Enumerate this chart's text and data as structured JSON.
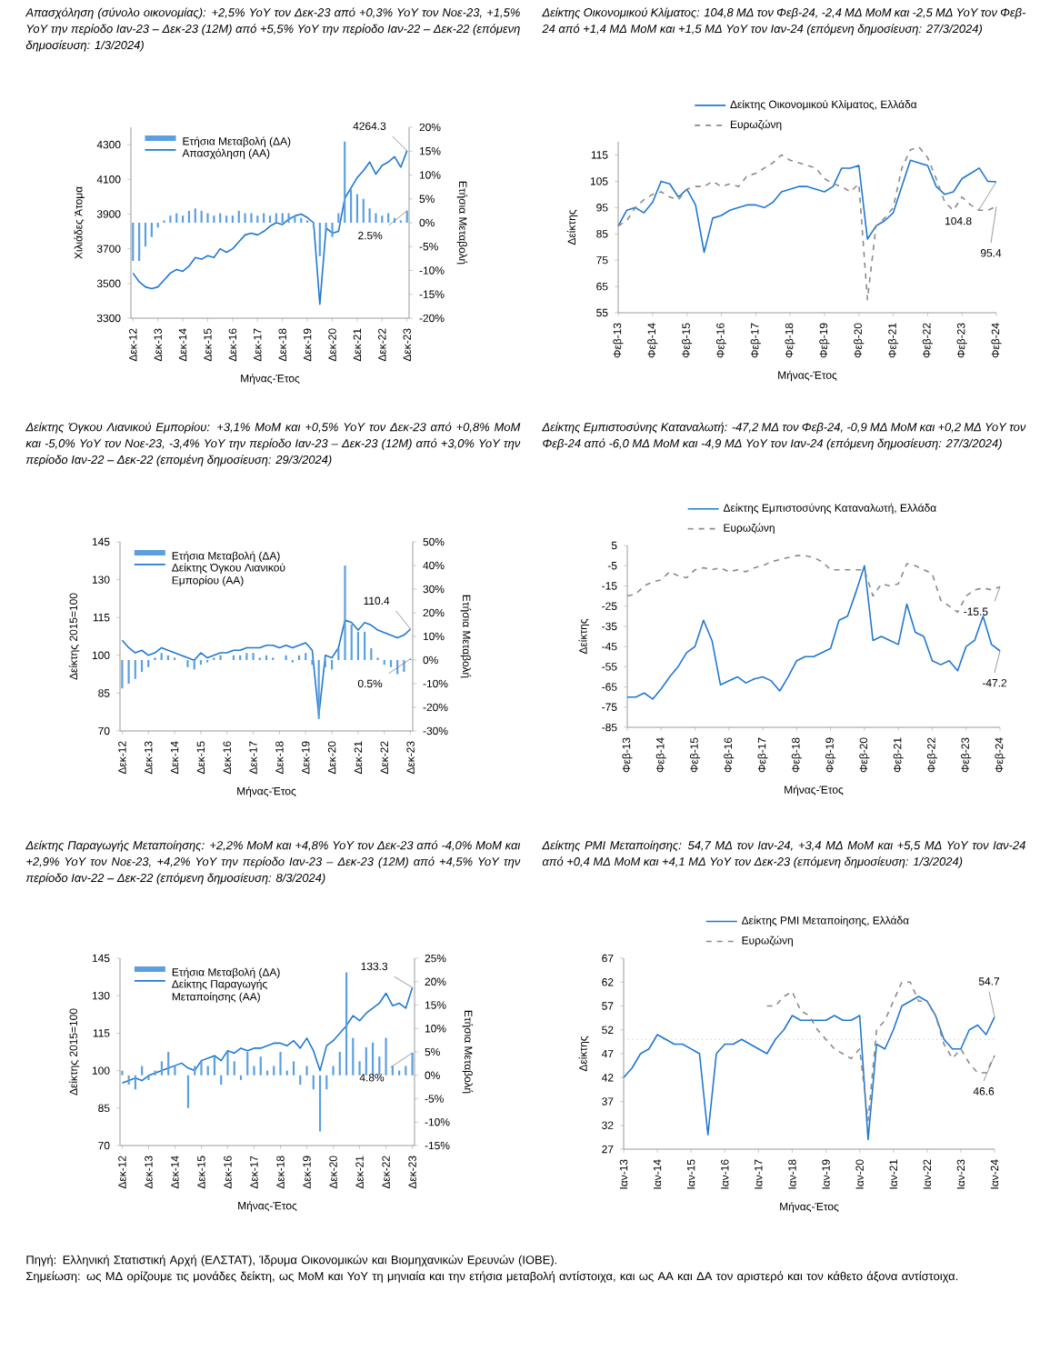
{
  "chart_data": [
    {
      "type": "line",
      "title": "Απασχόληση (σύνολο οικονομίας): +2,5% YoY τον Δεκ-23 από +0,3% YoY τον Νοε-23, +1,5% YoY την περίοδο Ιαν-23 – Δεκ-23 (12M) από +5,5% YoY την περίοδο Ιαν-22 – Δεκ-22 (επόμενη δημοσίευση: 1/3/2024)",
      "xlabel": "Μήνας-Έτος",
      "ylabel": "Χιλιάδες Άτομα",
      "y2label": "Ετήσια Μεταβολή",
      "legend": "top left",
      "x": [
        "2012-12",
        "2013-03",
        "2013-06",
        "2013-09",
        "2013-12",
        "2014-03",
        "2014-06",
        "2014-09",
        "2014-12",
        "2015-03",
        "2015-06",
        "2015-09",
        "2015-12",
        "2016-03",
        "2016-06",
        "2016-09",
        "2016-12",
        "2017-03",
        "2017-06",
        "2017-09",
        "2017-12",
        "2018-03",
        "2018-06",
        "2018-09",
        "2018-12",
        "2019-03",
        "2019-06",
        "2019-09",
        "2019-12",
        "2020-03",
        "2020-06",
        "2020-09",
        "2020-12",
        "2021-03",
        "2021-06",
        "2021-09",
        "2021-12",
        "2022-03",
        "2022-06",
        "2022-09",
        "2022-12",
        "2023-03",
        "2023-06",
        "2023-09",
        "2023-12"
      ],
      "xlim": [
        "2012-11",
        "2024-01"
      ],
      "xticks": [
        {
          "value": "2012-12",
          "label": "Δεκ-12"
        },
        {
          "value": "2013-12",
          "label": "Δεκ-13"
        },
        {
          "value": "2014-12",
          "label": "Δεκ-14"
        },
        {
          "value": "2015-12",
          "label": "Δεκ-15"
        },
        {
          "value": "2016-12",
          "label": "Δεκ-16"
        },
        {
          "value": "2017-12",
          "label": "Δεκ-17"
        },
        {
          "value": "2018-12",
          "label": "Δεκ-18"
        },
        {
          "value": "2019-12",
          "label": "Δεκ-19"
        },
        {
          "value": "2020-12",
          "label": "Δεκ-20"
        },
        {
          "value": "2021-12",
          "label": "Δεκ-21"
        },
        {
          "value": "2022-12",
          "label": "Δεκ-22"
        },
        {
          "value": "2023-12",
          "label": "Δεκ-23"
        }
      ],
      "ylim": [
        3300,
        4400
      ],
      "yticks": [
        3300,
        3500,
        3700,
        3900,
        4100,
        4300
      ],
      "y2lim": [
        -20,
        20
      ],
      "y2ticks": [
        {
          "value": -20,
          "label": "-20%"
        },
        {
          "value": -15,
          "label": "-15%"
        },
        {
          "value": -10,
          "label": "-10%"
        },
        {
          "value": -5,
          "label": "-5%"
        },
        {
          "value": 0,
          "label": "0%"
        },
        {
          "value": 5,
          "label": "5%"
        },
        {
          "value": 10,
          "label": "10%"
        },
        {
          "value": 15,
          "label": "15%"
        },
        {
          "value": 20,
          "label": "20%"
        }
      ],
      "series": [
        {
          "name": "Ετήσια Μεταβολή (ΔΑ)",
          "type": "bar",
          "axis": "y2",
          "color": "#5b9fe0",
          "values": [
            -8,
            -8,
            -5,
            -3,
            -1,
            0.5,
            1.5,
            2,
            1.5,
            2.5,
            3,
            2.5,
            2,
            1.5,
            2,
            1.5,
            1.5,
            2.5,
            2,
            2,
            1.5,
            2,
            1.5,
            2,
            2,
            2,
            1.5,
            1,
            0.5,
            -1,
            -7,
            -2,
            -3,
            2,
            17,
            7,
            6,
            5,
            3,
            2,
            1.5,
            2,
            1,
            0.5,
            2.5
          ],
          "value_labels": [
            null,
            null,
            null,
            null,
            null,
            null,
            null,
            null,
            null,
            null,
            null,
            null,
            null,
            null,
            null,
            null,
            null,
            null,
            null,
            null,
            null,
            null,
            null,
            null,
            null,
            null,
            null,
            null,
            null,
            null,
            null,
            null,
            null,
            null,
            null,
            null,
            null,
            null,
            null,
            null,
            null,
            null,
            null,
            null,
            "2.5%"
          ]
        },
        {
          "name": "Απασχόληση (ΑΑ)",
          "type": "line",
          "color": "#1f78d1",
          "values": [
            3560,
            3510,
            3480,
            3470,
            3480,
            3520,
            3560,
            3580,
            3570,
            3600,
            3650,
            3640,
            3660,
            3650,
            3700,
            3680,
            3700,
            3740,
            3780,
            3790,
            3780,
            3800,
            3830,
            3850,
            3840,
            3870,
            3890,
            3900,
            3880,
            3850,
            3380,
            3820,
            3790,
            3800,
            3990,
            4050,
            4110,
            4150,
            4200,
            4130,
            4180,
            4200,
            4230,
            4170,
            4264.3
          ],
          "value_labels": [
            null,
            null,
            null,
            null,
            null,
            null,
            null,
            null,
            null,
            null,
            null,
            null,
            null,
            null,
            null,
            null,
            null,
            null,
            null,
            null,
            null,
            null,
            null,
            null,
            null,
            null,
            null,
            null,
            null,
            null,
            null,
            null,
            null,
            null,
            null,
            null,
            null,
            null,
            null,
            null,
            null,
            null,
            null,
            null,
            "4264.3"
          ]
        }
      ]
    },
    {
      "type": "line",
      "title": "Δείκτης Οικονομικού Κλίματος: 104,8 ΜΔ τον Φεβ-24, -2,4 ΜΔ MoM και -2,5 ΜΔ YoY τον Φεβ-24 από +1,4 ΜΔ MoM και +1,5 ΜΔ YoY τον Ιαν-24 (επόμενη δημοσίευση: 27/3/2024)",
      "xlabel": "Μήνας-Έτος",
      "ylabel": "Δείκτης",
      "legend": "top",
      "x": [
        "2013-02",
        "2013-05",
        "2013-08",
        "2013-11",
        "2014-02",
        "2014-05",
        "2014-08",
        "2014-11",
        "2015-02",
        "2015-05",
        "2015-08",
        "2015-11",
        "2016-02",
        "2016-05",
        "2016-08",
        "2016-11",
        "2017-02",
        "2017-05",
        "2017-08",
        "2017-11",
        "2018-02",
        "2018-05",
        "2018-08",
        "2018-11",
        "2019-02",
        "2019-05",
        "2019-08",
        "2019-11",
        "2020-02",
        "2020-05",
        "2020-08",
        "2020-11",
        "2021-02",
        "2021-05",
        "2021-08",
        "2021-11",
        "2022-02",
        "2022-05",
        "2022-08",
        "2022-11",
        "2023-02",
        "2023-05",
        "2023-08",
        "2023-11",
        "2024-02"
      ],
      "xlim": [
        "2013-02",
        "2024-02"
      ],
      "xticks": [
        {
          "value": "2013-02",
          "label": "Φεβ-13"
        },
        {
          "value": "2014-02",
          "label": "Φεβ-14"
        },
        {
          "value": "2015-02",
          "label": "Φεβ-15"
        },
        {
          "value": "2016-02",
          "label": "Φεβ-16"
        },
        {
          "value": "2017-02",
          "label": "Φεβ-17"
        },
        {
          "value": "2018-02",
          "label": "Φεβ-18"
        },
        {
          "value": "2019-02",
          "label": "Φεβ-19"
        },
        {
          "value": "2020-02",
          "label": "Φεβ-20"
        },
        {
          "value": "2021-02",
          "label": "Φεβ-21"
        },
        {
          "value": "2022-02",
          "label": "Φεβ-22"
        },
        {
          "value": "2023-02",
          "label": "Φεβ-23"
        },
        {
          "value": "2024-02",
          "label": "Φεβ-24"
        }
      ],
      "ylim": [
        55,
        120
      ],
      "yticks": [
        55,
        65,
        75,
        85,
        95,
        105,
        115
      ],
      "series": [
        {
          "name": "Δείκτης Οικονομικού Κλίματος, Ελλάδα",
          "color": "#1f78d1",
          "values": [
            88,
            94,
            95,
            93,
            97,
            105,
            104,
            99,
            102,
            96,
            78,
            91,
            92,
            94,
            95,
            96,
            96,
            95,
            97,
            101,
            102,
            103,
            103,
            102,
            101,
            103,
            110,
            110,
            111,
            83,
            88,
            90,
            93,
            103,
            113,
            112,
            111,
            103,
            100,
            101,
            106,
            108,
            110,
            105,
            104.8
          ],
          "value_labels": [
            null,
            null,
            null,
            null,
            null,
            null,
            null,
            null,
            null,
            null,
            null,
            null,
            null,
            null,
            null,
            null,
            null,
            null,
            null,
            null,
            null,
            null,
            null,
            null,
            null,
            null,
            null,
            null,
            null,
            null,
            null,
            null,
            null,
            null,
            null,
            null,
            null,
            null,
            null,
            null,
            null,
            null,
            null,
            null,
            "104.8"
          ]
        },
        {
          "name": "Ευρωζώνη",
          "color": "#8a8a8a",
          "line_style": "dashed",
          "values": [
            88,
            90,
            95,
            98,
            100,
            101,
            99,
            98,
            102,
            103,
            103,
            105,
            103,
            104,
            103,
            107,
            108,
            110,
            112,
            115,
            113,
            112,
            111,
            110,
            106,
            104,
            103,
            101,
            104,
            60,
            88,
            91,
            95,
            110,
            117,
            118,
            114,
            106,
            97,
            94,
            99,
            96,
            94,
            94,
            95.4
          ],
          "value_labels": [
            null,
            null,
            null,
            null,
            null,
            null,
            null,
            null,
            null,
            null,
            null,
            null,
            null,
            null,
            null,
            null,
            null,
            null,
            null,
            null,
            null,
            null,
            null,
            null,
            null,
            null,
            null,
            null,
            null,
            null,
            null,
            null,
            null,
            null,
            null,
            null,
            null,
            null,
            null,
            null,
            null,
            null,
            null,
            null,
            "95.4"
          ]
        }
      ]
    },
    {
      "type": "line",
      "title": "Δείκτης Όγκου Λιανικού Εμπορίου: +3,1% MoM και +0,5% YoY τον Δεκ-23 από +0,8% MoM και -5,0% YoY τον Νοε-23, -3,4% YoY την περίοδο Ιαν-23 – Δεκ-23 (12M) από +3,0% YoY την περίοδο Ιαν-22 – Δεκ-22 (επομένη δημοσίευση: 29/3/2024)",
      "xlabel": "Μήνας-Έτος",
      "ylabel": "Δείκτης 2015=100",
      "y2label": "Ετήσια Μεταβολή",
      "legend": "top left",
      "x": [
        "2012-12",
        "2013-03",
        "2013-06",
        "2013-09",
        "2013-12",
        "2014-03",
        "2014-06",
        "2014-09",
        "2014-12",
        "2015-03",
        "2015-06",
        "2015-09",
        "2015-12",
        "2016-03",
        "2016-06",
        "2016-09",
        "2016-12",
        "2017-03",
        "2017-06",
        "2017-09",
        "2017-12",
        "2018-03",
        "2018-06",
        "2018-09",
        "2018-12",
        "2019-03",
        "2019-06",
        "2019-09",
        "2019-12",
        "2020-03",
        "2020-06",
        "2020-09",
        "2020-12",
        "2021-03",
        "2021-06",
        "2021-09",
        "2021-12",
        "2022-03",
        "2022-06",
        "2022-09",
        "2022-12",
        "2023-03",
        "2023-06",
        "2023-09",
        "2023-12"
      ],
      "xlim": [
        "2012-11",
        "2024-01"
      ],
      "xticks": [
        {
          "value": "2012-12",
          "label": "Δεκ-12"
        },
        {
          "value": "2013-12",
          "label": "Δεκ-13"
        },
        {
          "value": "2014-12",
          "label": "Δεκ-14"
        },
        {
          "value": "2015-12",
          "label": "Δεκ-15"
        },
        {
          "value": "2016-12",
          "label": "Δεκ-16"
        },
        {
          "value": "2017-12",
          "label": "Δεκ-17"
        },
        {
          "value": "2018-12",
          "label": "Δεκ-18"
        },
        {
          "value": "2019-12",
          "label": "Δεκ-19"
        },
        {
          "value": "2020-12",
          "label": "Δεκ-20"
        },
        {
          "value": "2021-12",
          "label": "Δεκ-21"
        },
        {
          "value": "2022-12",
          "label": "Δεκ-22"
        },
        {
          "value": "2023-12",
          "label": "Δεκ-23"
        }
      ],
      "ylim": [
        70,
        145
      ],
      "yticks": [
        70,
        85,
        100,
        115,
        130,
        145
      ],
      "y2lim": [
        -30,
        50
      ],
      "y2ticks": [
        {
          "value": -30,
          "label": "-30%"
        },
        {
          "value": -20,
          "label": "-20%"
        },
        {
          "value": -10,
          "label": "-10%"
        },
        {
          "value": 0,
          "label": "0%"
        },
        {
          "value": 10,
          "label": "10%"
        },
        {
          "value": 20,
          "label": "20%"
        },
        {
          "value": 30,
          "label": "30%"
        },
        {
          "value": 40,
          "label": "40%"
        },
        {
          "value": 50,
          "label": "50%"
        }
      ],
      "series": [
        {
          "name": "Ετήσια Μεταβολή (ΔΑ)",
          "type": "bar",
          "axis": "y2",
          "color": "#5b9fe0",
          "values": [
            -12,
            -10,
            -8,
            -5,
            -3,
            1,
            3,
            2,
            1,
            0,
            -3,
            -4,
            -2,
            -1,
            1,
            2,
            0,
            2,
            2,
            3,
            3,
            1,
            2,
            1,
            0,
            2,
            -1,
            2,
            3,
            -2,
            -25,
            -3,
            -4,
            5,
            40,
            15,
            12,
            12,
            5,
            1,
            -2,
            -3,
            -6,
            -5,
            0.5
          ],
          "value_labels": [
            null,
            null,
            null,
            null,
            null,
            null,
            null,
            null,
            null,
            null,
            null,
            null,
            null,
            null,
            null,
            null,
            null,
            null,
            null,
            null,
            null,
            null,
            null,
            null,
            null,
            null,
            null,
            null,
            null,
            null,
            null,
            null,
            null,
            null,
            null,
            null,
            null,
            null,
            null,
            null,
            null,
            null,
            null,
            null,
            "0.5%"
          ]
        },
        {
          "name": "Δείκτης Όγκου Λιανικού Εμπορίου (ΑΑ)",
          "type": "line",
          "color": "#1f78d1",
          "values": [
            106,
            103,
            101,
            102,
            100,
            101,
            103,
            102,
            101,
            100,
            99,
            98,
            101,
            99,
            100,
            101,
            101,
            102,
            102,
            103,
            103,
            103,
            104,
            104,
            103,
            104,
            103,
            104,
            105,
            102,
            76,
            100,
            99,
            103,
            114,
            113,
            110,
            113,
            112,
            110,
            109,
            108,
            107,
            108,
            110.4
          ],
          "value_labels": [
            null,
            null,
            null,
            null,
            null,
            null,
            null,
            null,
            null,
            null,
            null,
            null,
            null,
            null,
            null,
            null,
            null,
            null,
            null,
            null,
            null,
            null,
            null,
            null,
            null,
            null,
            null,
            null,
            null,
            null,
            null,
            null,
            null,
            null,
            null,
            null,
            null,
            null,
            null,
            null,
            null,
            null,
            null,
            null,
            "110.4"
          ]
        }
      ]
    },
    {
      "type": "line",
      "title": "Δείκτης Εμπιστοσύνης Καταναλωτή: -47,2 ΜΔ τον Φεβ-24, -0,9 ΜΔ MoM και +0,2 ΜΔ YoY τον Φεβ-24 από -6,0 ΜΔ MoM και -4,9 ΜΔ YoY τον Ιαν-24 (επόμενη δημοσίευση: 27/3/2024)",
      "xlabel": "Μήνας-Έτος",
      "ylabel": "Δείκτης",
      "legend": "top",
      "x": [
        "2013-02",
        "2013-05",
        "2013-08",
        "2013-11",
        "2014-02",
        "2014-05",
        "2014-08",
        "2014-11",
        "2015-02",
        "2015-05",
        "2015-08",
        "2015-11",
        "2016-02",
        "2016-05",
        "2016-08",
        "2016-11",
        "2017-02",
        "2017-05",
        "2017-08",
        "2017-11",
        "2018-02",
        "2018-05",
        "2018-08",
        "2018-11",
        "2019-02",
        "2019-05",
        "2019-08",
        "2019-11",
        "2020-02",
        "2020-05",
        "2020-08",
        "2020-11",
        "2021-02",
        "2021-05",
        "2021-08",
        "2021-11",
        "2022-02",
        "2022-05",
        "2022-08",
        "2022-11",
        "2023-02",
        "2023-05",
        "2023-08",
        "2023-11",
        "2024-02"
      ],
      "xlim": [
        "2013-02",
        "2024-02"
      ],
      "xticks": [
        {
          "value": "2013-02",
          "label": "Φεβ-13"
        },
        {
          "value": "2014-02",
          "label": "Φεβ-14"
        },
        {
          "value": "2015-02",
          "label": "Φεβ-15"
        },
        {
          "value": "2016-02",
          "label": "Φεβ-16"
        },
        {
          "value": "2017-02",
          "label": "Φεβ-17"
        },
        {
          "value": "2018-02",
          "label": "Φεβ-18"
        },
        {
          "value": "2019-02",
          "label": "Φεβ-19"
        },
        {
          "value": "2020-02",
          "label": "Φεβ-20"
        },
        {
          "value": "2021-02",
          "label": "Φεβ-21"
        },
        {
          "value": "2022-02",
          "label": "Φεβ-22"
        },
        {
          "value": "2023-02",
          "label": "Φεβ-23"
        },
        {
          "value": "2024-02",
          "label": "Φεβ-24"
        }
      ],
      "ylim": [
        -85,
        5
      ],
      "yticks": [
        -85,
        -75,
        -65,
        -55,
        -45,
        -35,
        -25,
        -15,
        -5,
        5
      ],
      "series": [
        {
          "name": "Δείκτης Εμπιστοσύνης Καταναλωτή, Ελλάδα",
          "color": "#1f78d1",
          "values": [
            -70,
            -70,
            -68,
            -71,
            -66,
            -60,
            -55,
            -48,
            -45,
            -32,
            -42,
            -64,
            -62,
            -60,
            -63,
            -61,
            -60,
            -62,
            -67,
            -60,
            -52,
            -50,
            -50,
            -48,
            -46,
            -32,
            -30,
            -18,
            -5,
            -42,
            -40,
            -42,
            -44,
            -24,
            -38,
            -40,
            -52,
            -54,
            -52,
            -57,
            -45,
            -42,
            -30,
            -44,
            -47.2
          ],
          "value_labels": [
            null,
            null,
            null,
            null,
            null,
            null,
            null,
            null,
            null,
            null,
            null,
            null,
            null,
            null,
            null,
            null,
            null,
            null,
            null,
            null,
            null,
            null,
            null,
            null,
            null,
            null,
            null,
            null,
            null,
            null,
            null,
            null,
            null,
            null,
            null,
            null,
            null,
            null,
            null,
            null,
            null,
            null,
            null,
            null,
            "-47.2"
          ]
        },
        {
          "name": "Ευρωζώνη",
          "color": "#8a8a8a",
          "line_style": "dashed",
          "values": [
            -20,
            -19,
            -15,
            -13,
            -12,
            -8,
            -10,
            -11,
            -7,
            -6,
            -7,
            -6,
            -8,
            -7,
            -8,
            -6,
            -5,
            -3,
            -2,
            -1,
            0,
            0,
            -1,
            -3,
            -7,
            -7,
            -7,
            -7,
            -7,
            -20,
            -14,
            -15,
            -14,
            -4,
            -5,
            -7,
            -9,
            -22,
            -25,
            -28,
            -20,
            -17,
            -16,
            -17,
            -15.5
          ],
          "value_labels": [
            null,
            null,
            null,
            null,
            null,
            null,
            null,
            null,
            null,
            null,
            null,
            null,
            null,
            null,
            null,
            null,
            null,
            null,
            null,
            null,
            null,
            null,
            null,
            null,
            null,
            null,
            null,
            null,
            null,
            null,
            null,
            null,
            null,
            null,
            null,
            null,
            null,
            null,
            null,
            null,
            null,
            null,
            null,
            null,
            "-15.5"
          ]
        }
      ]
    },
    {
      "type": "line",
      "title": "Δείκτης Παραγωγής Μεταποίησης: +2,2% MoM και +4,8% YoY τον Δεκ-23 από -4,0% MoM και +2,9% YoY τον Νοε-23, +4,2% YoY την περίοδο Ιαν-23 – Δεκ-23 (12M) από +4,5% YoY την περίοδο Ιαν-22 – Δεκ-22 (επόμενη δημοσίευση: 8/3/2024)",
      "xlabel": "Μήνας-Έτος",
      "ylabel": "Δείκτης 2015=100",
      "y2label": "Ετήσια Μεταβολή",
      "legend": "top left",
      "x": [
        "2012-12",
        "2013-03",
        "2013-06",
        "2013-09",
        "2013-12",
        "2014-03",
        "2014-06",
        "2014-09",
        "2014-12",
        "2015-03",
        "2015-06",
        "2015-09",
        "2015-12",
        "2016-03",
        "2016-06",
        "2016-09",
        "2016-12",
        "2017-03",
        "2017-06",
        "2017-09",
        "2017-12",
        "2018-03",
        "2018-06",
        "2018-09",
        "2018-12",
        "2019-03",
        "2019-06",
        "2019-09",
        "2019-12",
        "2020-03",
        "2020-06",
        "2020-09",
        "2020-12",
        "2021-03",
        "2021-06",
        "2021-09",
        "2021-12",
        "2022-03",
        "2022-06",
        "2022-09",
        "2022-12",
        "2023-03",
        "2023-06",
        "2023-09",
        "2023-12"
      ],
      "xlim": [
        "2012-11",
        "2024-01"
      ],
      "xticks": [
        {
          "value": "2012-12",
          "label": "Δεκ-12"
        },
        {
          "value": "2013-12",
          "label": "Δεκ-13"
        },
        {
          "value": "2014-12",
          "label": "Δεκ-14"
        },
        {
          "value": "2015-12",
          "label": "Δεκ-15"
        },
        {
          "value": "2016-12",
          "label": "Δεκ-16"
        },
        {
          "value": "2017-12",
          "label": "Δεκ-17"
        },
        {
          "value": "2018-12",
          "label": "Δεκ-18"
        },
        {
          "value": "2019-12",
          "label": "Δεκ-19"
        },
        {
          "value": "2020-12",
          "label": "Δεκ-20"
        },
        {
          "value": "2021-12",
          "label": "Δεκ-21"
        },
        {
          "value": "2022-12",
          "label": "Δεκ-22"
        },
        {
          "value": "2023-12",
          "label": "Δεκ-23"
        }
      ],
      "ylim": [
        70,
        145
      ],
      "yticks": [
        70,
        85,
        100,
        115,
        130,
        145
      ],
      "y2lim": [
        -15,
        25
      ],
      "y2ticks": [
        {
          "value": -15,
          "label": "-15%"
        },
        {
          "value": -10,
          "label": "-10%"
        },
        {
          "value": -5,
          "label": "-5%"
        },
        {
          "value": 0,
          "label": "0%"
        },
        {
          "value": 5,
          "label": "5%"
        },
        {
          "value": 10,
          "label": "10%"
        },
        {
          "value": 15,
          "label": "15%"
        },
        {
          "value": 20,
          "label": "20%"
        },
        {
          "value": 25,
          "label": "25%"
        }
      ],
      "series": [
        {
          "name": "Ετήσια Μεταβολή (ΔΑ)",
          "type": "bar",
          "axis": "y2",
          "color": "#5b9fe0",
          "values": [
            1,
            -2,
            -3,
            2,
            -1,
            1,
            3,
            5,
            2,
            0,
            -7,
            2,
            3,
            2,
            4,
            -2,
            5,
            3,
            -1,
            5,
            2,
            4,
            1,
            2,
            5,
            1,
            3,
            -2,
            2,
            -3,
            -12,
            -3,
            2,
            5,
            22,
            8,
            3,
            6,
            7,
            4,
            8,
            2,
            1,
            2,
            4.8
          ],
          "value_labels": [
            null,
            null,
            null,
            null,
            null,
            null,
            null,
            null,
            null,
            null,
            null,
            null,
            null,
            null,
            null,
            null,
            null,
            null,
            null,
            null,
            null,
            null,
            null,
            null,
            null,
            null,
            null,
            null,
            null,
            null,
            null,
            null,
            null,
            null,
            null,
            null,
            null,
            null,
            null,
            null,
            null,
            null,
            null,
            null,
            "4.8%"
          ]
        },
        {
          "name": "Δείκτης Παραγωγής Μεταποίησης (ΑΑ)",
          "type": "line",
          "color": "#1f78d1",
          "values": [
            95,
            96,
            97,
            96,
            98,
            99,
            100,
            101,
            102,
            103,
            101,
            100,
            104,
            105,
            106,
            104,
            108,
            107,
            109,
            108,
            109,
            109,
            110,
            111,
            111,
            110,
            112,
            109,
            113,
            108,
            100,
            110,
            112,
            115,
            118,
            122,
            120,
            123,
            125,
            127,
            131,
            126,
            127,
            125,
            133.3
          ],
          "value_labels": [
            null,
            null,
            null,
            null,
            null,
            null,
            null,
            null,
            null,
            null,
            null,
            null,
            null,
            null,
            null,
            null,
            null,
            null,
            null,
            null,
            null,
            null,
            null,
            null,
            null,
            null,
            null,
            null,
            null,
            null,
            null,
            null,
            null,
            null,
            null,
            null,
            null,
            null,
            null,
            null,
            null,
            null,
            null,
            null,
            "133.3"
          ]
        }
      ]
    },
    {
      "type": "line",
      "title": "Δείκτης PMI Μεταποίησης: 54,7 ΜΔ τον Ιαν-24, +3,4 ΜΔ MoM και +5,5 ΜΔ YoY τον Ιαν-24 από +0,4 ΜΔ MoM και +4,1 ΜΔ YoY τον Δεκ-23 (επόμενη δημοσίευση: 1/3/2024)",
      "xlabel": "Μήνας-Έτος",
      "ylabel": "Δείκτης",
      "legend": "top",
      "x": [
        "2013-01",
        "2013-04",
        "2013-07",
        "2013-10",
        "2014-01",
        "2014-04",
        "2014-07",
        "2014-10",
        "2015-01",
        "2015-04",
        "2015-07",
        "2015-10",
        "2016-01",
        "2016-04",
        "2016-07",
        "2016-10",
        "2017-01",
        "2017-04",
        "2017-07",
        "2017-10",
        "2018-01",
        "2018-04",
        "2018-07",
        "2018-10",
        "2019-01",
        "2019-04",
        "2019-07",
        "2019-10",
        "2020-01",
        "2020-04",
        "2020-07",
        "2020-10",
        "2021-01",
        "2021-04",
        "2021-07",
        "2021-10",
        "2022-01",
        "2022-04",
        "2022-07",
        "2022-10",
        "2023-01",
        "2023-04",
        "2023-07",
        "2023-10",
        "2024-01"
      ],
      "xlim": [
        "2013-01",
        "2024-01"
      ],
      "xticks": [
        {
          "value": "2013-01",
          "label": "Ιαν-13"
        },
        {
          "value": "2014-01",
          "label": "Ιαν-14"
        },
        {
          "value": "2015-01",
          "label": "Ιαν-15"
        },
        {
          "value": "2016-01",
          "label": "Ιαν-16"
        },
        {
          "value": "2017-01",
          "label": "Ιαν-17"
        },
        {
          "value": "2018-01",
          "label": "Ιαν-18"
        },
        {
          "value": "2019-01",
          "label": "Ιαν-19"
        },
        {
          "value": "2020-01",
          "label": "Ιαν-20"
        },
        {
          "value": "2021-01",
          "label": "Ιαν-21"
        },
        {
          "value": "2022-01",
          "label": "Ιαν-22"
        },
        {
          "value": "2023-01",
          "label": "Ιαν-23"
        },
        {
          "value": "2024-01",
          "label": "Ιαν-24"
        }
      ],
      "ylim": [
        27,
        67
      ],
      "yticks": [
        27,
        32,
        37,
        42,
        47,
        52,
        57,
        62,
        67
      ],
      "ref_lines": [
        {
          "axis": "y",
          "value": 50,
          "color": "#999999",
          "line_style": "dotted"
        }
      ],
      "series": [
        {
          "name": "Δείκτης PMI Μεταποίησης, Ελλάδα",
          "color": "#1f78d1",
          "values": [
            42,
            44,
            47,
            48,
            51,
            50,
            49,
            49,
            48,
            47,
            30,
            47,
            49,
            49,
            50,
            49,
            48,
            47,
            50,
            52,
            55,
            54,
            54,
            54,
            54,
            55,
            54,
            54,
            55,
            29,
            49,
            48,
            52,
            57,
            58,
            59,
            58,
            55,
            50,
            48,
            48,
            52,
            53,
            51,
            54.7
          ],
          "value_labels": [
            null,
            null,
            null,
            null,
            null,
            null,
            null,
            null,
            null,
            null,
            null,
            null,
            null,
            null,
            null,
            null,
            null,
            null,
            null,
            null,
            null,
            null,
            null,
            null,
            null,
            null,
            null,
            null,
            null,
            null,
            null,
            null,
            null,
            null,
            null,
            null,
            null,
            null,
            null,
            null,
            null,
            null,
            null,
            null,
            "54.7"
          ]
        },
        {
          "name": "Ευρωζώνη",
          "color": "#8a8a8a",
          "line_style": "dashed",
          "values": [
            null,
            null,
            null,
            null,
            null,
            null,
            null,
            null,
            null,
            null,
            null,
            null,
            null,
            null,
            null,
            null,
            null,
            57,
            57,
            59,
            60,
            56,
            55,
            52,
            50,
            48,
            47,
            46,
            48,
            33,
            52,
            54,
            58,
            62,
            62,
            58,
            58,
            55,
            49,
            46,
            48,
            45,
            43,
            43,
            46.6
          ],
          "value_labels": [
            null,
            null,
            null,
            null,
            null,
            null,
            null,
            null,
            null,
            null,
            null,
            null,
            null,
            null,
            null,
            null,
            null,
            null,
            null,
            null,
            null,
            null,
            null,
            null,
            null,
            null,
            null,
            null,
            null,
            null,
            null,
            null,
            null,
            null,
            null,
            null,
            null,
            null,
            null,
            null,
            null,
            null,
            null,
            null,
            "46.6"
          ]
        }
      ],
      "annotations": [
        "Πηγή: Ελληνική Στατιστική Αρχή (ΕΛΣΤΑΤ), Ίδρυμα Οικονομικών και Βιομηχανικών Ερευνών (ΙΟΒΕ).",
        "Σημείωση: ως ΜΔ ορίζουμε τις μονάδες δείκτη, ως MoM και YoY τη μηνιαία και την ετήσια μεταβολή αντίστοιχα, και ως ΑΑ και ΔΑ τον αριστερό και τον κάθετο άξονα αντίστοιχα."
      ]
    }
  ]
}
